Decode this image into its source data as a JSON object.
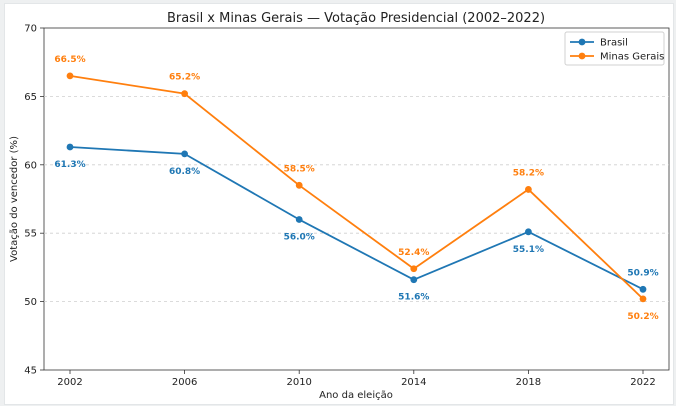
{
  "chart_data": {
    "type": "line",
    "title": "Brasil x Minas Gerais — Votação Presidencial (2002–2022)",
    "xlabel": "Ano da eleição",
    "ylabel": "Votação do vencedor (%)",
    "categories": [
      "2002",
      "2006",
      "2010",
      "2014",
      "2018",
      "2022"
    ],
    "ylim": [
      45,
      70
    ],
    "yticks": [
      "45",
      "50",
      "55",
      "60",
      "65",
      "70"
    ],
    "grid": "horizontal dashed",
    "legend": "top-right",
    "series": [
      {
        "name": "Brasil",
        "color": "#1f77b4",
        "values": [
          61.3,
          60.8,
          56.0,
          51.6,
          55.1,
          50.9
        ],
        "labels": [
          "61.3%",
          "60.8%",
          "56.0%",
          "51.6%",
          "55.1%",
          "50.9%"
        ],
        "label_side": [
          "below",
          "below",
          "below",
          "below",
          "below",
          "above"
        ]
      },
      {
        "name": "Minas Gerais",
        "color": "#ff7f0e",
        "values": [
          66.5,
          65.2,
          58.5,
          52.4,
          58.2,
          50.2
        ],
        "labels": [
          "66.5%",
          "65.2%",
          "58.5%",
          "52.4%",
          "58.2%",
          "50.2%"
        ],
        "label_side": [
          "above",
          "above",
          "above",
          "above",
          "above",
          "below"
        ]
      }
    ]
  }
}
